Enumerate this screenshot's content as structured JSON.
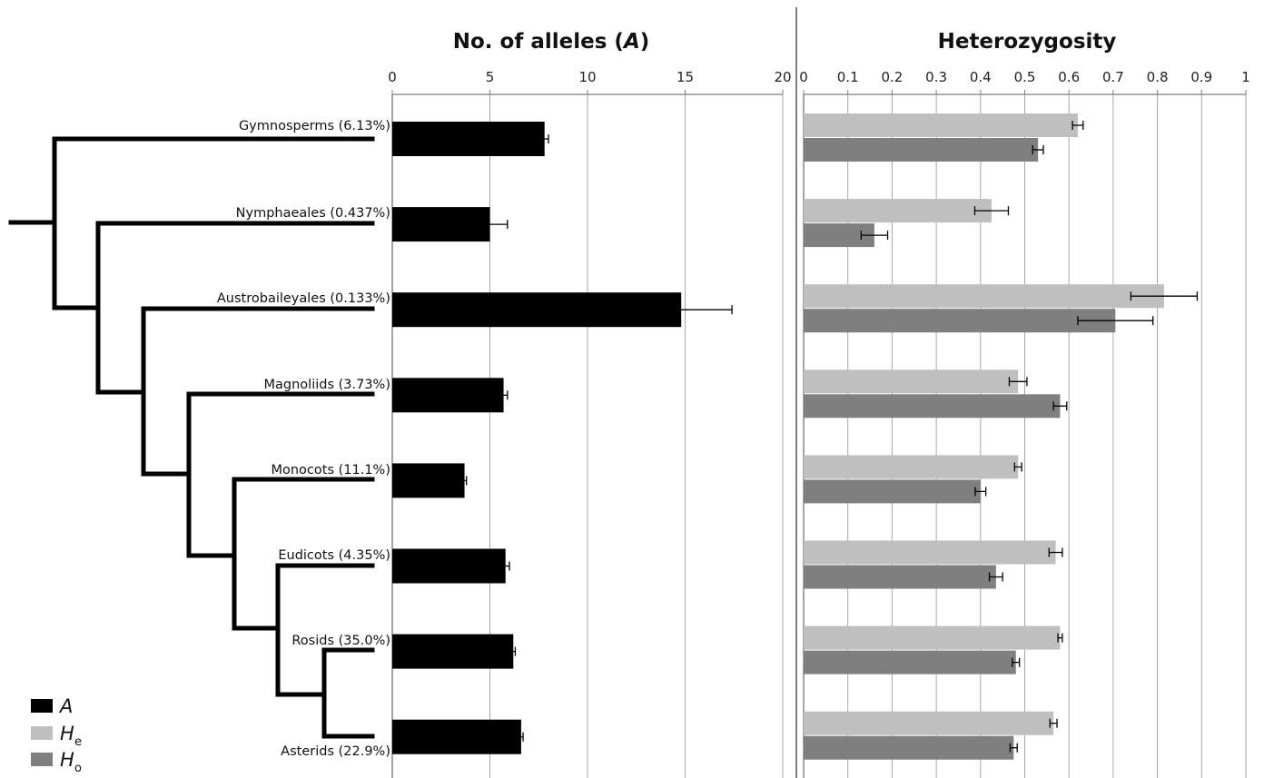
{
  "colors": {
    "A": "#000000",
    "He": "#bfbfbf",
    "Ho": "#7f7f7f",
    "grid": "#a6a6a6",
    "axis": "#7f7f7f",
    "tree": "#000000"
  },
  "chart_data": [
    {
      "type": "bar",
      "orientation": "horizontal",
      "title": "No. of alleles (A)",
      "title_prefix": "No. of alleles (",
      "title_italic": "A",
      "title_suffix": ")",
      "xlim": [
        0,
        20
      ],
      "xticks": [
        "0",
        "5",
        "10",
        "15",
        "20"
      ],
      "grid": true,
      "categories": [
        "Gymnosperms (6.13%)",
        "Nymphaeales (0.437%)",
        "Austrobaileyales (0.133%)",
        "Magnoliids (3.73%)",
        "Monocots (11.1%)",
        "Eudicots (4.35%)",
        "Rosids (35.0%)",
        "Asterids (22.9%)"
      ],
      "series": [
        {
          "key": "A",
          "values": [
            7.8,
            5.0,
            14.8,
            5.7,
            3.7,
            5.8,
            6.2,
            6.6
          ],
          "errors": [
            0.2,
            0.9,
            2.6,
            0.2,
            0.1,
            0.2,
            0.1,
            0.1
          ]
        }
      ]
    },
    {
      "type": "bar",
      "orientation": "horizontal",
      "title": "Heterozygosity",
      "xlim": [
        0,
        1
      ],
      "xticks": [
        "0",
        "0.1",
        "0.2",
        "0.3",
        "0.4",
        "0.5",
        "0.6",
        "0.7",
        "0.8",
        "0.9",
        "1"
      ],
      "grid": true,
      "categories": [
        "Gymnosperms (6.13%)",
        "Nymphaeales (0.437%)",
        "Austrobaileyales (0.133%)",
        "Magnoliids (3.73%)",
        "Monocots (11.1%)",
        "Eudicots (4.35%)",
        "Rosids (35.0%)",
        "Asterids (22.9%)"
      ],
      "series": [
        {
          "key": "He",
          "values": [
            0.62,
            0.425,
            0.815,
            0.485,
            0.485,
            0.57,
            0.58,
            0.565
          ],
          "errors": [
            0.012,
            0.038,
            0.075,
            0.02,
            0.008,
            0.015,
            0.005,
            0.008
          ]
        },
        {
          "key": "Ho",
          "values": [
            0.53,
            0.16,
            0.705,
            0.58,
            0.4,
            0.435,
            0.48,
            0.475
          ],
          "errors": [
            0.012,
            0.03,
            0.085,
            0.015,
            0.012,
            0.015,
            0.008,
            0.008
          ]
        }
      ]
    }
  ],
  "legend": {
    "placement": "bottom-left",
    "items": [
      {
        "key": "A",
        "label": "A",
        "subscript": ""
      },
      {
        "key": "He",
        "label": "H",
        "subscript": "e"
      },
      {
        "key": "Ho",
        "label": "H",
        "subscript": "o"
      }
    ]
  }
}
